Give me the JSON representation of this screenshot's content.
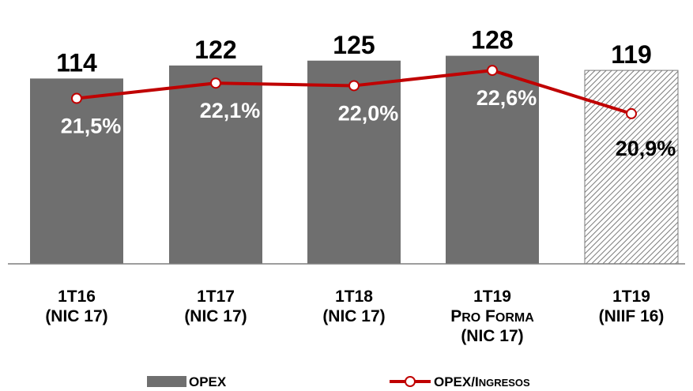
{
  "chart_data": {
    "type": "bar",
    "categories": [
      [
        "1T16",
        "(NIC 17)"
      ],
      [
        "1T17",
        "(NIC 17)"
      ],
      [
        "1T18",
        "(NIC 17)"
      ],
      [
        "1T19",
        "PRO FORMA",
        "(NIC 17)"
      ],
      [
        "1T19",
        "(NIIF 16)"
      ]
    ],
    "series": [
      {
        "name": "OPEX",
        "type": "bar",
        "values": [
          114,
          122,
          125,
          128,
          119
        ],
        "labels": [
          "114",
          "122",
          "125",
          "128",
          "119"
        ],
        "hatched": [
          false,
          false,
          false,
          false,
          true
        ]
      },
      {
        "name": "OPEX/INGRESOS",
        "type": "line",
        "values": [
          21.5,
          22.1,
          22.0,
          22.6,
          20.9
        ],
        "labels": [
          "21,5%",
          "22,1%",
          "22,0%",
          "22,6%",
          "20,9%"
        ]
      }
    ],
    "legend": {
      "position": "bottom",
      "entries": [
        {
          "big": "OPEX",
          "small": ""
        },
        {
          "big": "OPEX/I",
          "small": "NGRESOS"
        }
      ]
    },
    "ylim": [
      0,
      138
    ],
    "line_ylim": [
      15,
      24
    ],
    "colors": {
      "bar": "#6f6f6f",
      "line": "#c00000",
      "pct_on_bar": "#ffffff",
      "pct_off_bar": "#000000"
    }
  }
}
